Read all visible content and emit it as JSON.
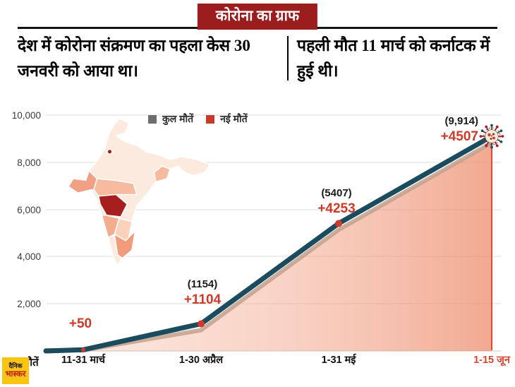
{
  "header": {
    "title": "कोरोना का ग्राफ"
  },
  "intro": {
    "left": "देश में कोरोना संक्रमण का पहला केस 30 जनवरी को आया था।",
    "right": "पहली मौत 11 मार्च को कर्नाटक में हुई थी।"
  },
  "chart_data": {
    "type": "line",
    "title": "कोरोना का ग्राफ",
    "categories": [
      "11-31 मार्च",
      "1-30 अप्रैल",
      "1-31 मई",
      "1-15 जून"
    ],
    "series": [
      {
        "name": "कुल मौतें",
        "color": "#1a4c5e",
        "values": [
          50,
          1154,
          5407,
          9914
        ]
      },
      {
        "name": "नई मौतें",
        "color": "#cf3a27",
        "values": [
          50,
          1104,
          4253,
          4507
        ]
      }
    ],
    "annotations": [
      {
        "total": "",
        "new": "+50"
      },
      {
        "total": "(1154)",
        "new": "+1104"
      },
      {
        "total": "(5407)",
        "new": "+4253"
      },
      {
        "total": "(9,914)",
        "new": "+4507"
      }
    ],
    "ylabel": "मौतें",
    "yticks": [
      "10,000",
      "8,000",
      "6,000",
      "4,000",
      "2,000"
    ],
    "ylim": [
      0,
      10000
    ],
    "grid": true,
    "legend_position": "top"
  },
  "colors": {
    "header_bg": "#9b1d1d",
    "total_line": "#1a4c5e",
    "new_deaths_red": "#cf3a27",
    "area_fill": "#f2a488",
    "legend_total_gray": "#6d6d6d",
    "map_highlight": "#a61e1e",
    "logo_yellow": "#f9c412"
  },
  "footer": {
    "brand_line1": "दैनिक",
    "brand_line2": "भास्कर"
  }
}
